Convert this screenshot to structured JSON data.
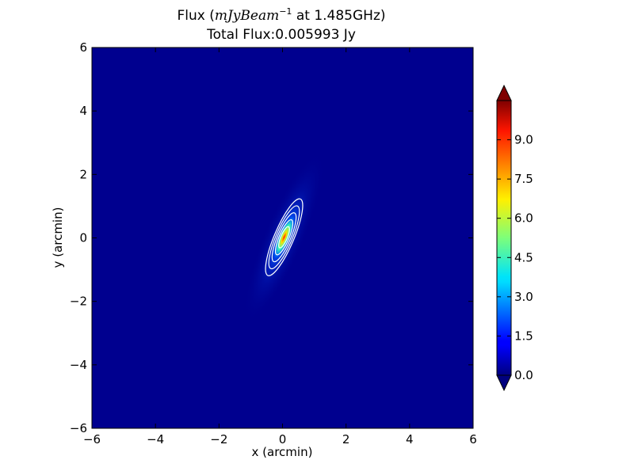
{
  "chart_data": {
    "type": "heatmap",
    "title_line1": "Flux ($mJyBeam^{-1}$ at 1.485GHz)",
    "title_line1_parts": {
      "prefix": "Flux (",
      "math": "mJyBeam",
      "superscript": "−1",
      "suffix": " at 1.485GHz)"
    },
    "title_line2": "Total Flux:0.005993 Jy",
    "xlabel": "x (arcmin)",
    "ylabel": "y (arcmin)",
    "xlim": [
      -6,
      6
    ],
    "ylim": [
      -6,
      6
    ],
    "xticks": [
      -6,
      -4,
      -2,
      0,
      2,
      4,
      6
    ],
    "yticks": [
      -6,
      -4,
      -2,
      0,
      2,
      4,
      6
    ],
    "xtick_labels": [
      "−6",
      "−4",
      "−2",
      "0",
      "2",
      "4",
      "6"
    ],
    "ytick_labels": [
      "−6",
      "−4",
      "−2",
      "0",
      "2",
      "4",
      "6"
    ],
    "colormap": "jet",
    "colorbar": {
      "min": 0.0,
      "max": 10.5,
      "extend": "both",
      "ticks": [
        0.0,
        1.5,
        3.0,
        4.5,
        6.0,
        7.5,
        9.0
      ],
      "tick_labels": [
        "0.0",
        "1.5",
        "3.0",
        "4.5",
        "6.0",
        "7.5",
        "9.0"
      ]
    },
    "source": {
      "center": [
        0.05,
        0.02
      ],
      "major_axis_arcmin": 1.2,
      "minor_axis_arcmin": 0.2,
      "position_angle_deg": 23,
      "peak_mjy_per_beam": 10
    },
    "contour_color": "#ffffff",
    "contour_levels": [
      1,
      2,
      3,
      4,
      5
    ]
  }
}
